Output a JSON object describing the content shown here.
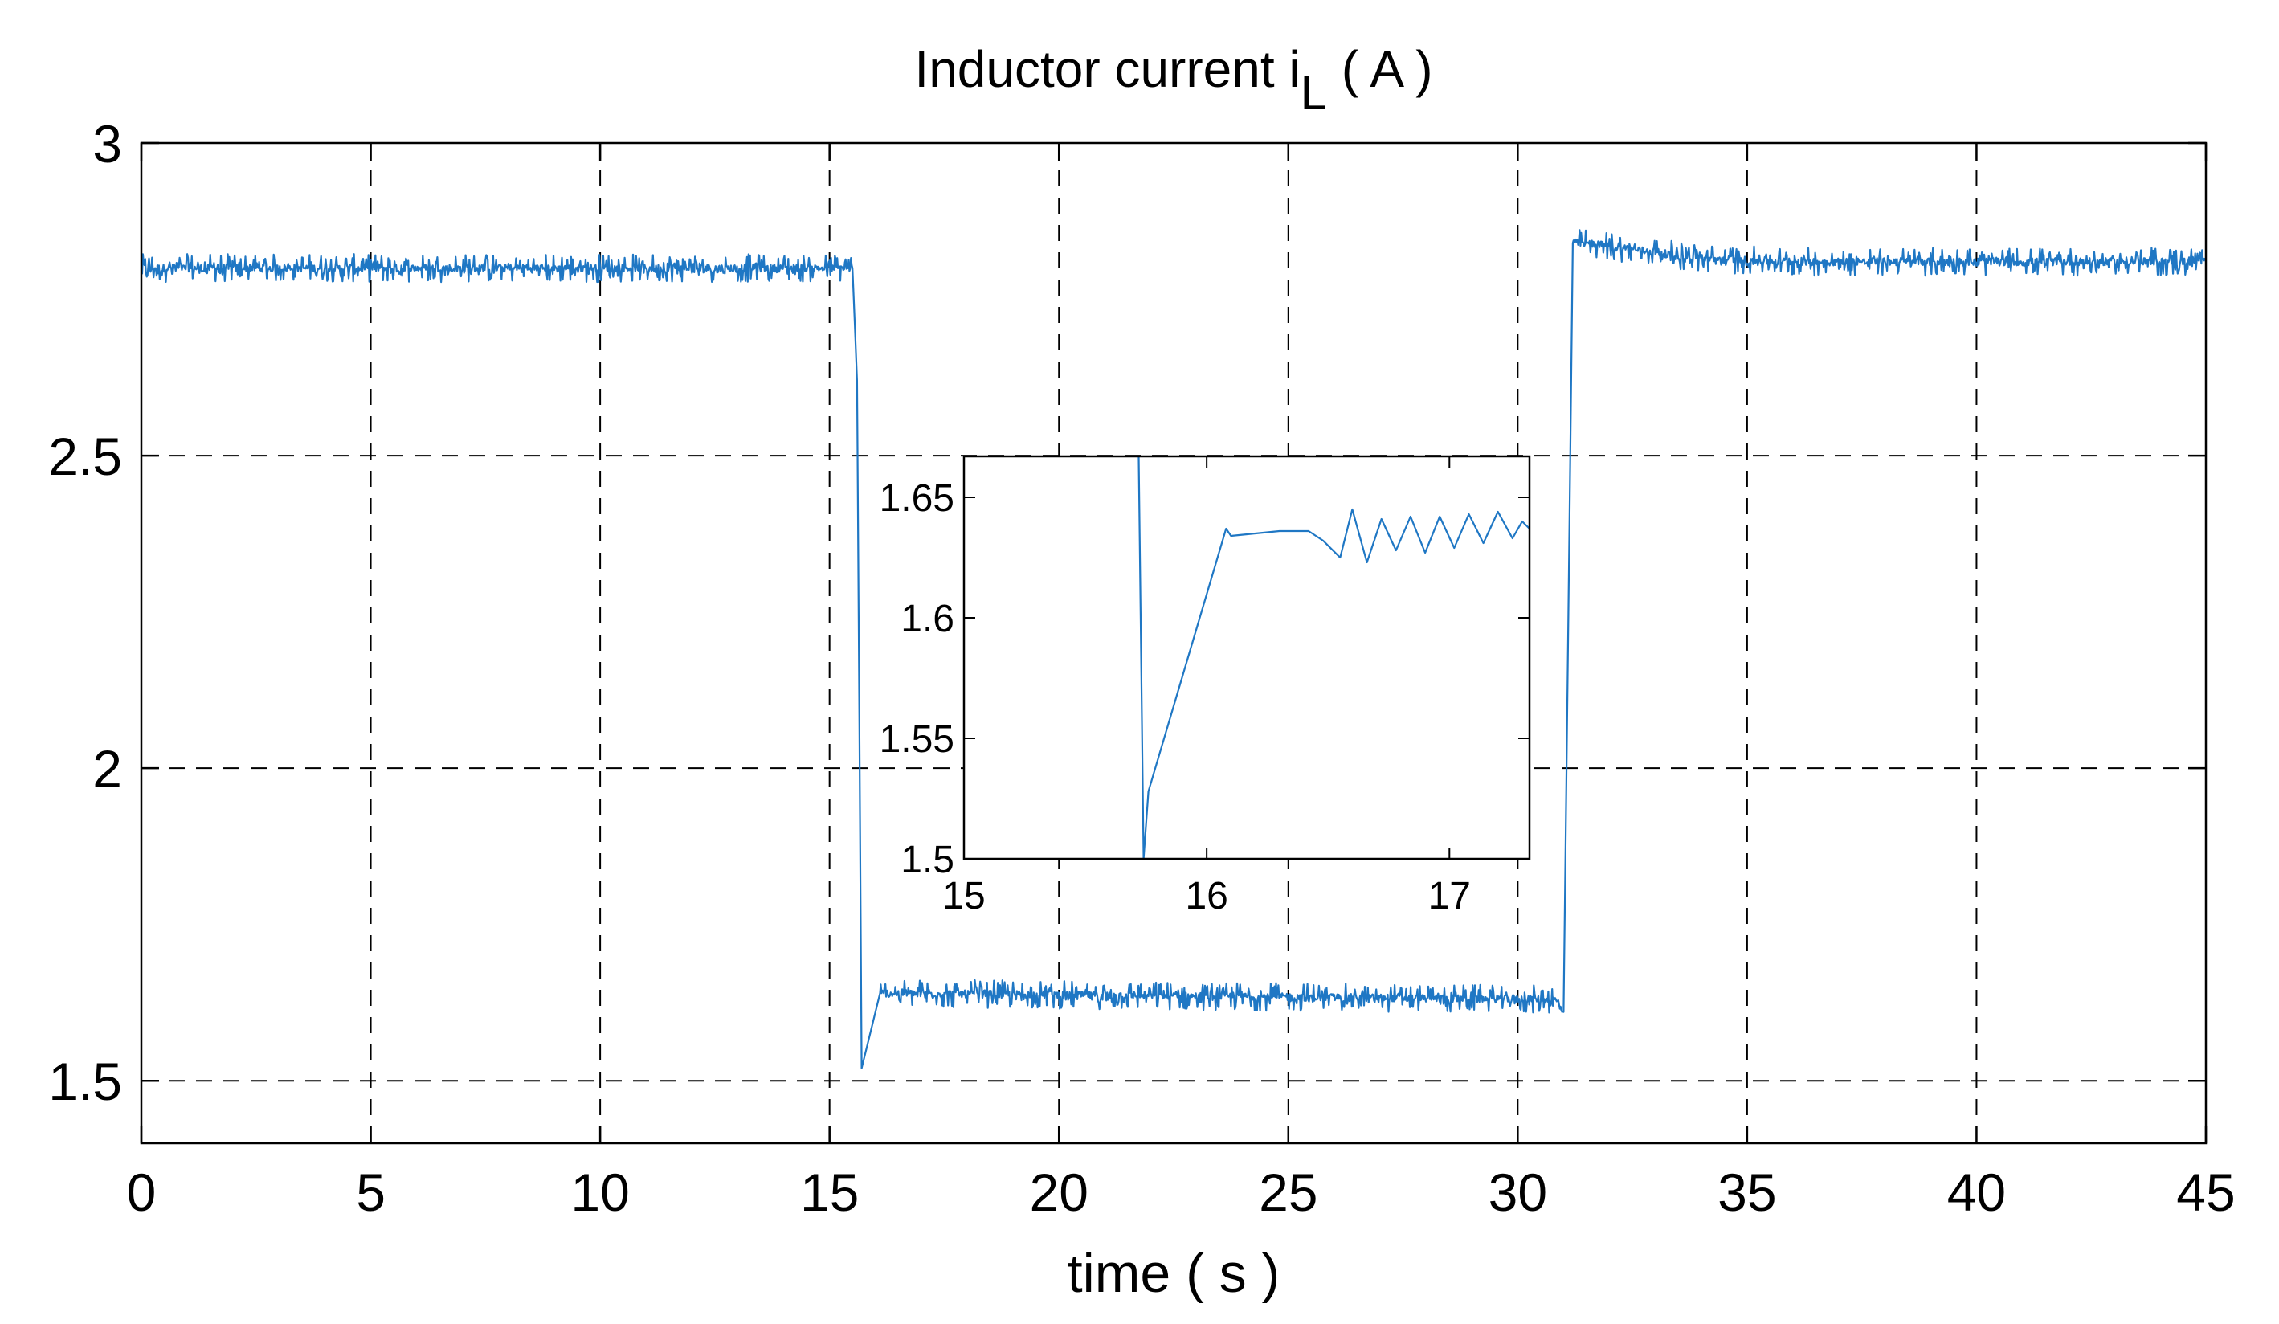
{
  "chart_data": [
    {
      "type": "line",
      "title_main": "Inductor current i",
      "title_sub": "L",
      "title_tail": " ( A )",
      "xlabel": "time ( s )",
      "ylabel": "",
      "xlim": [
        0,
        45
      ],
      "ylim": [
        1.4,
        3.0
      ],
      "xticks": [
        "0",
        "5",
        "10",
        "15",
        "20",
        "25",
        "30",
        "35",
        "40",
        "45"
      ],
      "yticks": [
        "1.5",
        "2",
        "2.5",
        "3"
      ],
      "grid": true,
      "series_color": "#1f77c4",
      "series": [
        {
          "points": [
            [
              0,
              2.8
            ],
            [
              15.5,
              2.8
            ],
            [
              15.6,
              2.62
            ],
            [
              15.7,
              1.52
            ],
            [
              16.1,
              1.64
            ],
            [
              30.8,
              1.63
            ],
            [
              31.0,
              1.61
            ],
            [
              31.2,
              2.84
            ],
            [
              31.5,
              2.84
            ],
            [
              32.5,
              2.83
            ],
            [
              34.0,
              2.815
            ],
            [
              36.0,
              2.81
            ],
            [
              45.0,
              2.81
            ]
          ]
        }
      ]
    },
    {
      "type": "line",
      "inset": true,
      "xlim": [
        15.0,
        17.33
      ],
      "ylim": [
        1.5,
        1.667
      ],
      "xticks": [
        "15",
        "16",
        "17"
      ],
      "yticks": [
        "1.5",
        "1.55",
        "1.6",
        "1.65"
      ],
      "grid": false,
      "series_color": "#1f77c4",
      "series": [
        {
          "points": [
            [
              15.72,
              1.67
            ],
            [
              15.74,
              1.5
            ],
            [
              15.76,
              1.528
            ],
            [
              16.08,
              1.637
            ],
            [
              16.1,
              1.634
            ],
            [
              16.3,
              1.636
            ],
            [
              16.42,
              1.636
            ],
            [
              16.48,
              1.632
            ],
            [
              16.55,
              1.625
            ],
            [
              16.6,
              1.645
            ],
            [
              16.66,
              1.623
            ],
            [
              16.72,
              1.641
            ],
            [
              16.78,
              1.628
            ],
            [
              16.84,
              1.642
            ],
            [
              16.9,
              1.627
            ],
            [
              16.96,
              1.642
            ],
            [
              17.02,
              1.629
            ],
            [
              17.08,
              1.643
            ],
            [
              17.14,
              1.631
            ],
            [
              17.2,
              1.644
            ],
            [
              17.26,
              1.633
            ],
            [
              17.3,
              1.64
            ],
            [
              17.33,
              1.637
            ]
          ]
        }
      ]
    }
  ]
}
